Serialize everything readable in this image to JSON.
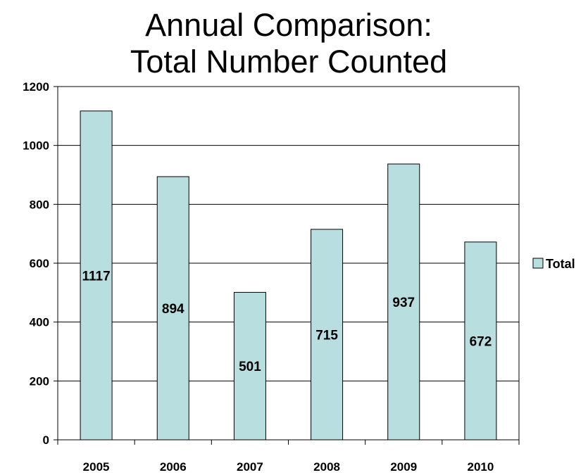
{
  "chart_data": {
    "type": "bar",
    "title_lines": [
      "Annual Comparison:",
      "Total Number Counted"
    ],
    "categories": [
      "2005",
      "2006",
      "2007",
      "2008",
      "2009",
      "2010"
    ],
    "series": [
      {
        "name": "Total",
        "values": [
          1117,
          894,
          501,
          715,
          937,
          672
        ]
      }
    ],
    "data_labels": [
      "1117",
      "894",
      "501",
      "715",
      "937",
      "672"
    ],
    "y_ticks": [
      "0",
      "200",
      "400",
      "600",
      "800",
      "1000",
      "1200"
    ],
    "ylim": [
      0,
      1200
    ],
    "grid": true,
    "legend_position": "right",
    "colors": {
      "bar_fill": "#b8dee0",
      "bar_stroke": "#000000",
      "grid": "#000000"
    }
  }
}
